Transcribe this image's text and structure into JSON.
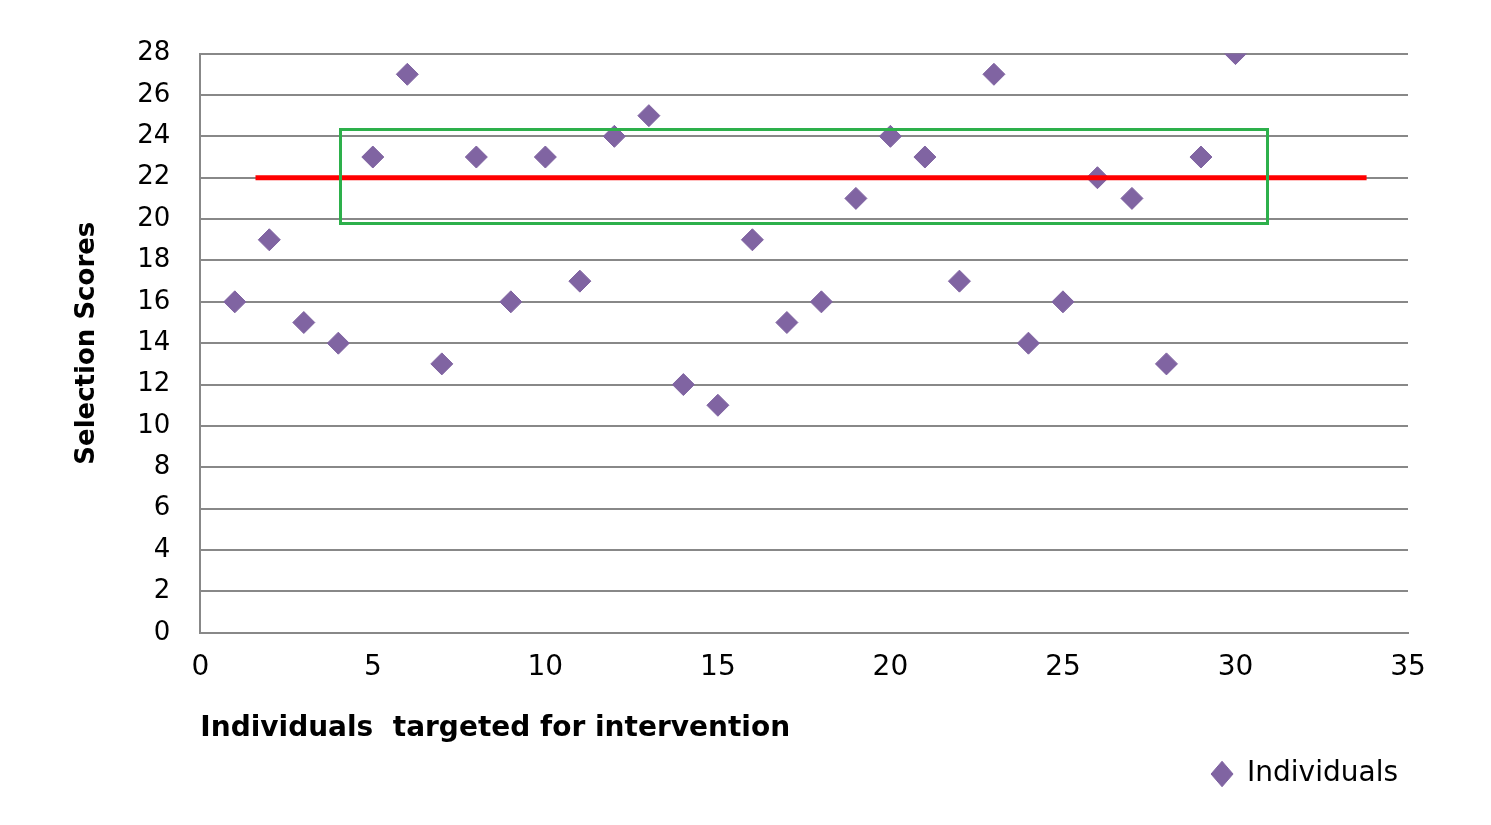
{
  "chart_data": {
    "type": "scatter",
    "xlabel": "Individuals  targeted for intervention",
    "ylabel": "Selection Scores",
    "xlim": [
      0,
      35
    ],
    "xticks": [
      0,
      5,
      10,
      15,
      20,
      25,
      30,
      35
    ],
    "ylim": [
      0,
      28
    ],
    "yticks": [
      0,
      2,
      4,
      6,
      8,
      10,
      12,
      14,
      16,
      18,
      20,
      22,
      24,
      26,
      28
    ],
    "grid": "y",
    "legend": "bottom right",
    "marker": "diamond",
    "series": [
      {
        "name": "Individuals",
        "color": "#8064a2",
        "x": [
          1,
          2,
          3,
          4,
          5,
          6,
          7,
          8,
          9,
          10,
          11,
          12,
          13,
          14,
          15,
          16,
          17,
          18,
          19,
          20,
          21,
          22,
          23,
          24,
          25,
          26,
          27,
          28,
          29,
          30
        ],
        "values": [
          16,
          19,
          15,
          14,
          23,
          27,
          13,
          23,
          16,
          23,
          17,
          24,
          25,
          12,
          11,
          19,
          15,
          16,
          21,
          24,
          23,
          17,
          27,
          14,
          16,
          22,
          21,
          13,
          23,
          28
        ]
      },
      {
        "type": "line",
        "color": "#ff0000",
        "marker": "none",
        "x": [
          1.6,
          33.8
        ],
        "values": [
          22,
          22
        ]
      }
    ]
  }
}
